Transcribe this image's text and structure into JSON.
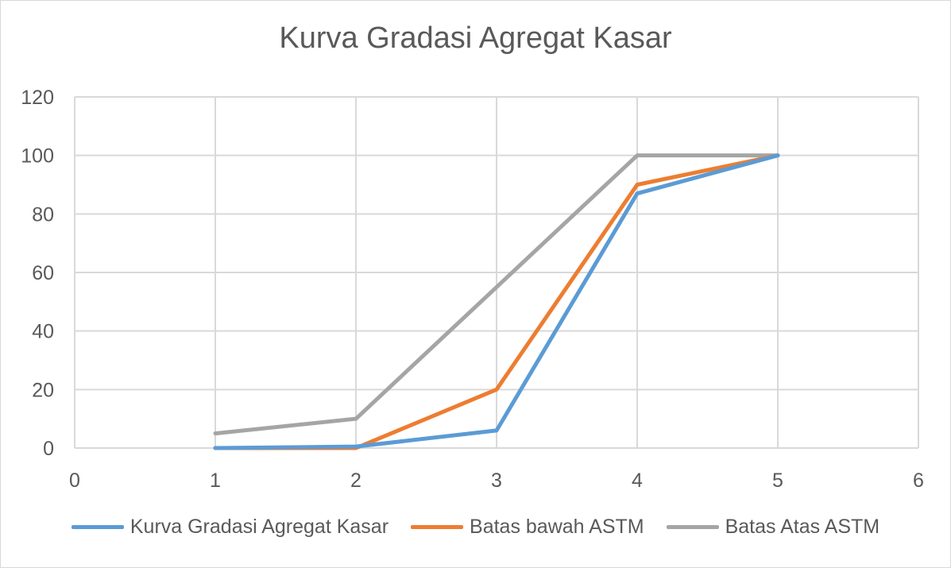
{
  "chart_data": {
    "type": "line",
    "title": "Kurva Gradasi Agregat Kasar",
    "xlabel": "",
    "ylabel": "",
    "xlim": [
      0,
      6
    ],
    "ylim": [
      0,
      120
    ],
    "x_ticks": [
      "0",
      "1",
      "2",
      "3",
      "4",
      "5",
      "6"
    ],
    "y_ticks": [
      "0",
      "20",
      "40",
      "60",
      "80",
      "100",
      "120"
    ],
    "grid": true,
    "legend_position": "bottom",
    "x": [
      1,
      2,
      3,
      4,
      5
    ],
    "series": [
      {
        "name": "Kurva Gradasi Agregat Kasar",
        "color": "#5b9bd5",
        "values": [
          0,
          0.5,
          6,
          87,
          100
        ]
      },
      {
        "name": "Batas bawah ASTM",
        "color": "#ed7d31",
        "values": [
          0,
          0,
          20,
          90,
          100
        ]
      },
      {
        "name": "Batas Atas ASTM",
        "color": "#a5a5a5",
        "values": [
          5,
          10,
          55,
          100,
          100
        ]
      }
    ]
  }
}
